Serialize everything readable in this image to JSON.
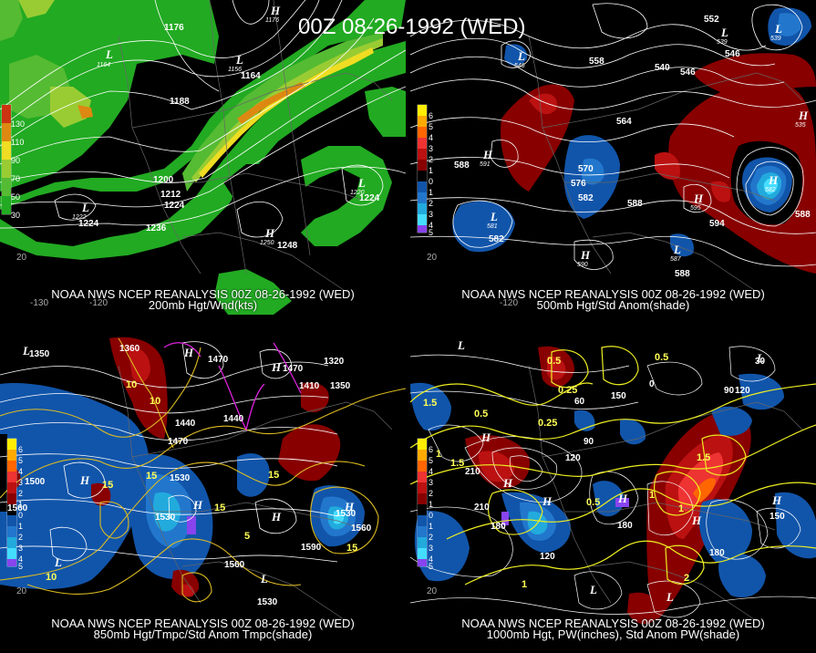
{
  "title": "00Z 08-26-1992 (WED)",
  "panels": [
    {
      "id": "200mb",
      "caption_line1": "NOAA NWS NCEP REANALYSIS 00Z 08-26-1992 (WED)",
      "caption_line2": "200mb Hgt/Wnd(kts)",
      "colorbar": [
        {
          "label": "130",
          "color": "#cc3311"
        },
        {
          "label": "110",
          "color": "#dd8811"
        },
        {
          "label": "90",
          "color": "#eedd22"
        },
        {
          "label": "70",
          "color": "#99cc33"
        },
        {
          "label": "50",
          "color": "#55bb33"
        },
        {
          "label": "30",
          "color": "#22aa22"
        }
      ],
      "contour_labels": [
        "1176",
        "1176",
        "1164",
        "1188",
        "1200",
        "1212",
        "1224",
        "1224",
        "1224",
        "1236",
        "1248"
      ],
      "lows": [
        {
          "name": "L",
          "value": "1164"
        },
        {
          "name": "L",
          "value": "1156"
        },
        {
          "name": "L",
          "value": "1222"
        },
        {
          "name": "L",
          "value": "1220"
        }
      ],
      "highs": [
        {
          "name": "H",
          "value": "1178"
        },
        {
          "name": "H",
          "value": "1250"
        }
      ],
      "lon_labels": [
        "-130",
        "-120"
      ],
      "lat_labels": [
        "20"
      ]
    },
    {
      "id": "500mb",
      "caption_line1": "NOAA NWS NCEP REANALYSIS 00Z 08-26-1992 (WED)",
      "caption_line2": "500mb Hgt/Std Anom(shade)",
      "colorbar": [
        {
          "label": "6",
          "color": "#ffee00"
        },
        {
          "label": "5",
          "color": "#ffaa00"
        },
        {
          "label": "4",
          "color": "#ff6600"
        },
        {
          "label": "3",
          "color": "#ee3333"
        },
        {
          "label": "2",
          "color": "#bb1111"
        },
        {
          "label": "1",
          "color": "#880000"
        },
        {
          "label": "0",
          "color": "#000000"
        },
        {
          "label": "1",
          "color": "#1155aa"
        },
        {
          "label": "2",
          "color": "#2277cc"
        },
        {
          "label": "3",
          "color": "#22aadd"
        },
        {
          "label": "4",
          "color": "#44ddff"
        },
        {
          "label": "5",
          "color": "#8844ee"
        }
      ],
      "contour_labels": [
        "552",
        "558",
        "540",
        "546",
        "546",
        "564",
        "588",
        "570",
        "576",
        "582",
        "588",
        "594",
        "588",
        "588",
        "582"
      ],
      "lows": [
        {
          "name": "L",
          "value": "546"
        },
        {
          "name": "L",
          "value": "539"
        },
        {
          "name": "L",
          "value": "539"
        },
        {
          "name": "L",
          "value": "581"
        },
        {
          "name": "L",
          "value": "587"
        }
      ],
      "highs": [
        {
          "name": "H",
          "value": "591"
        },
        {
          "name": "H",
          "value": "595"
        },
        {
          "name": "H",
          "value": "590"
        },
        {
          "name": "H",
          "value": "535"
        },
        {
          "name": "H",
          "value": "582"
        }
      ],
      "lon_labels": [
        "-120"
      ],
      "lat_labels": [
        "20"
      ]
    },
    {
      "id": "850mb",
      "caption_line1": "NOAA NWS NCEP REANALYSIS 00Z 08-26-1992 (WED)",
      "caption_line2": "850mb Hgt/Tmpc/Std Anom Tmpc(shade)",
      "colorbar_labels": [
        "6",
        "5",
        "4",
        "3",
        "2",
        "1",
        "0",
        "1",
        "2",
        "3",
        "4",
        "5"
      ],
      "contour_labels": [
        "1350",
        "1360",
        "1470",
        "1470",
        "1320",
        "1410",
        "1350",
        "1440",
        "1440",
        "1470",
        "1530",
        "1500",
        "1560",
        "1530",
        "1530",
        "1590",
        "1560",
        "1530",
        "1560"
      ],
      "temp_labels": [
        "10",
        "10",
        "15",
        "15",
        "15",
        "15",
        "10",
        "15",
        "5"
      ],
      "lows": [
        {
          "name": "L"
        },
        {
          "name": "L"
        },
        {
          "name": "L"
        }
      ],
      "highs": [
        {
          "name": "H"
        },
        {
          "name": "H"
        },
        {
          "name": "H"
        },
        {
          "name": "H"
        },
        {
          "name": "H"
        },
        {
          "name": "H"
        }
      ],
      "lat_labels": [
        "20"
      ]
    },
    {
      "id": "1000mb",
      "caption_line1": "NOAA NWS NCEP REANALYSIS 00Z 08-26-1992 (WED)",
      "caption_line2": "1000mb Hgt, PW(inches), Std Anom PW(shade)",
      "colorbar_labels": [
        "6",
        "5",
        "4",
        "3",
        "2",
        "1",
        "0",
        "1",
        "2",
        "3",
        "4",
        "5"
      ],
      "contour_labels": [
        "30",
        "90",
        "150",
        "120",
        "60",
        "0",
        "90",
        "120",
        "210",
        "210",
        "180",
        "180",
        "120",
        "150",
        "180"
      ],
      "pw_labels": [
        "0.5",
        "0.5",
        "0.25",
        "1.5",
        "1",
        "1.5",
        "0.5",
        "1",
        "1.5",
        "2",
        "1",
        "0.5",
        "0.25",
        "1"
      ],
      "lows": [
        {
          "name": "L"
        },
        {
          "name": "L"
        },
        {
          "name": "L"
        },
        {
          "name": "L"
        }
      ],
      "highs": [
        {
          "name": "H"
        },
        {
          "name": "H"
        },
        {
          "name": "H"
        },
        {
          "name": "H"
        },
        {
          "name": "H"
        },
        {
          "name": "H"
        }
      ],
      "lat_labels": [
        "20"
      ]
    }
  ]
}
